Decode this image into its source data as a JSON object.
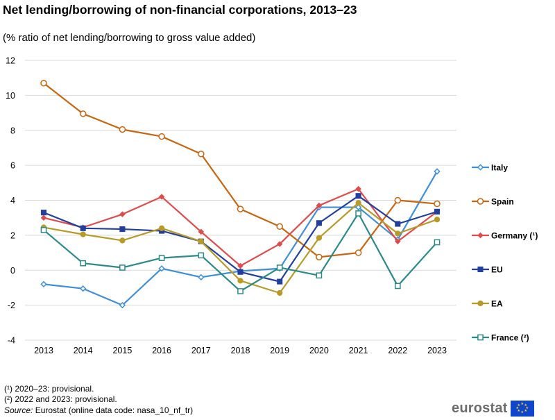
{
  "page": {
    "title": "Net lending/borrowing of non-financial corporations, 2013–23",
    "subtitle": "(% ratio of net lending/borrowing  to gross value added)",
    "footnote1": "(¹) 2020–23: provisional.",
    "footnote2": "(²) 2022 and 2023: provisional.",
    "source_label": "Source:",
    "source_text": " Eurostat (online data code: nasa_10_nf_tr)",
    "logo_text": "eurostat"
  },
  "chart_data": {
    "type": "line",
    "title": "Net lending/borrowing of non-financial corporations, 2013–23",
    "subtitle": "(% ratio of net lending/borrowing  to gross value added)",
    "xlabel": "",
    "ylabel": "",
    "categories": [
      "2013",
      "2014",
      "2015",
      "2016",
      "2017",
      "2018",
      "2019",
      "2020",
      "2021",
      "2022",
      "2023"
    ],
    "ylim": [
      -4,
      12
    ],
    "yticks": [
      -4,
      -2,
      0,
      2,
      4,
      6,
      8,
      10,
      12
    ],
    "grid": true,
    "legend_position": "right",
    "series": [
      {
        "name": "Italy",
        "color": "#3e8fd9",
        "marker": "diamond-open",
        "values": [
          -0.8,
          -1.05,
          -2.0,
          0.1,
          -0.4,
          -0.05,
          0.1,
          3.6,
          3.6,
          1.75,
          5.65
        ]
      },
      {
        "name": "Spain",
        "color": "#c8650f",
        "marker": "circle-open",
        "values": [
          10.7,
          8.95,
          8.05,
          7.65,
          6.65,
          3.5,
          2.5,
          0.75,
          1.0,
          4.0,
          3.8
        ]
      },
      {
        "name": "Germany (¹)",
        "color": "#e04b4b",
        "marker": "diamond",
        "values": [
          3.0,
          2.45,
          3.2,
          4.2,
          2.2,
          0.25,
          1.5,
          3.7,
          4.65,
          1.65,
          3.35
        ]
      },
      {
        "name": "EU",
        "color": "#223f9e",
        "marker": "square",
        "values": [
          3.3,
          2.4,
          2.35,
          2.25,
          1.65,
          -0.1,
          -0.65,
          2.7,
          4.25,
          2.65,
          3.35
        ]
      },
      {
        "name": "EA",
        "color": "#b89a26",
        "marker": "circle",
        "values": [
          2.45,
          2.05,
          1.7,
          2.4,
          1.65,
          -0.6,
          -1.3,
          1.85,
          3.85,
          2.1,
          2.9
        ]
      },
      {
        "name": "France (²)",
        "color": "#2a8a8a",
        "marker": "square-open",
        "values": [
          2.3,
          0.4,
          0.15,
          0.7,
          0.85,
          -1.2,
          0.15,
          -0.3,
          3.25,
          -0.9,
          1.6
        ]
      }
    ]
  }
}
